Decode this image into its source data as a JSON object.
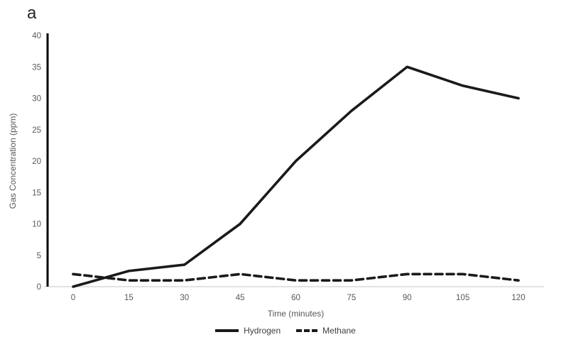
{
  "panel_label": "a",
  "chart_data": {
    "type": "line",
    "title": "",
    "x": [
      0,
      15,
      30,
      45,
      60,
      75,
      90,
      105,
      120
    ],
    "series": [
      {
        "name": "Hydrogen",
        "style": "solid",
        "color": "#1a1a1a",
        "values": [
          0,
          2.5,
          3.5,
          10,
          20,
          28,
          35,
          32,
          30
        ]
      },
      {
        "name": "Methane",
        "style": "dashed",
        "color": "#1a1a1a",
        "values": [
          2,
          1,
          1,
          2,
          1,
          1,
          2,
          2,
          1
        ]
      }
    ],
    "xlabel": "Time (minutes)",
    "ylabel": "Gas Concentration (ppm)",
    "xticks": [
      0,
      15,
      30,
      45,
      60,
      75,
      90,
      105,
      120
    ],
    "yticks": [
      0,
      5,
      10,
      15,
      20,
      25,
      30,
      35,
      40
    ],
    "xlim": [
      0,
      120
    ],
    "ylim": [
      0,
      40
    ],
    "grid": false,
    "legend_position": "bottom",
    "axis_color": "#000000",
    "tick_label_color": "#595959",
    "baseline_color": "#d9d9d9"
  }
}
